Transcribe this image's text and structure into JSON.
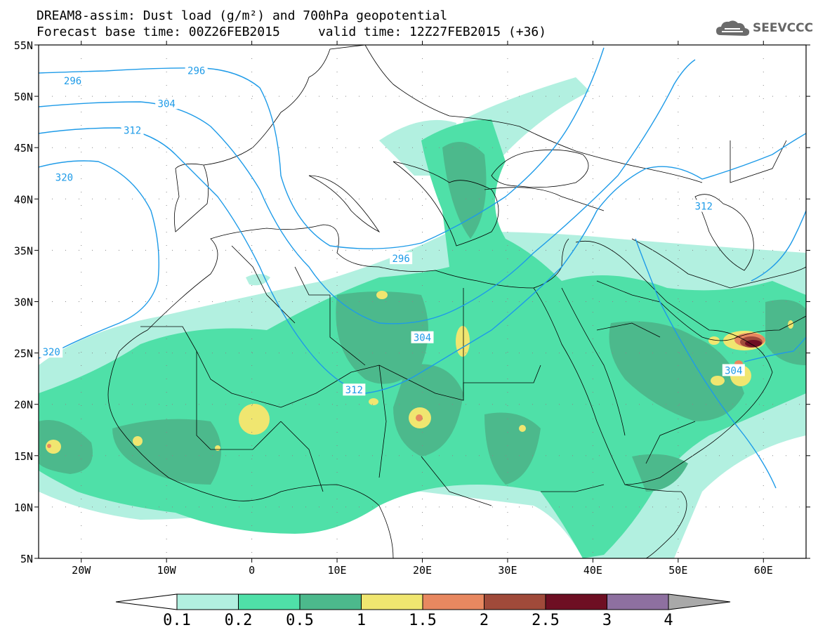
{
  "title": {
    "line1": "DREAM8-assim: Dust load (g/m²) and 700hPa geopotential",
    "line2": "Forecast base time: 00Z26FEB2015     valid time: 12Z27FEB2015 (+36)"
  },
  "logo": {
    "text": "SEEVCCC",
    "icon": "cloud-logo-icon"
  },
  "map": {
    "lon_range": [
      -25,
      65
    ],
    "lat_range": [
      5,
      55
    ],
    "lat_ticks": [
      {
        "value": 55,
        "label": "55N"
      },
      {
        "value": 50,
        "label": "50N"
      },
      {
        "value": 45,
        "label": "45N"
      },
      {
        "value": 40,
        "label": "40N"
      },
      {
        "value": 35,
        "label": "35N"
      },
      {
        "value": 30,
        "label": "30N"
      },
      {
        "value": 25,
        "label": "25N"
      },
      {
        "value": 20,
        "label": "20N"
      },
      {
        "value": 15,
        "label": "15N"
      },
      {
        "value": 10,
        "label": "10N"
      },
      {
        "value": 5,
        "label": "5N"
      }
    ],
    "lon_ticks": [
      {
        "value": -20,
        "label": "20W"
      },
      {
        "value": -10,
        "label": "10W"
      },
      {
        "value": 0,
        "label": "0"
      },
      {
        "value": 10,
        "label": "10E"
      },
      {
        "value": 20,
        "label": "20E"
      },
      {
        "value": 30,
        "label": "30E"
      },
      {
        "value": 40,
        "label": "40E"
      },
      {
        "value": 50,
        "label": "50E"
      },
      {
        "value": 60,
        "label": "60E"
      }
    ],
    "contour_labels": [
      {
        "text": "296",
        "lon": -21,
        "lat": 51.5
      },
      {
        "text": "296",
        "lon": -6.5,
        "lat": 52.5
      },
      {
        "text": "304",
        "lon": -10,
        "lat": 49.3
      },
      {
        "text": "312",
        "lon": -14,
        "lat": 46.7
      },
      {
        "text": "320",
        "lon": -22,
        "lat": 42.1
      },
      {
        "text": "296",
        "lon": 17.5,
        "lat": 34.2
      },
      {
        "text": "304",
        "lon": 20,
        "lat": 26.5
      },
      {
        "text": "312",
        "lon": 12,
        "lat": 21.4
      },
      {
        "text": "320",
        "lon": -23.5,
        "lat": 25.1
      },
      {
        "text": "312",
        "lon": 53,
        "lat": 39.3
      },
      {
        "text": "304",
        "lon": 56.5,
        "lat": 23.3
      }
    ]
  },
  "legend": {
    "labels": [
      "0.1",
      "0.2",
      "0.5",
      "1",
      "1.5",
      "2",
      "2.5",
      "3",
      "4"
    ],
    "colors": [
      "#b2f0e0",
      "#4fe0a8",
      "#4cb98c",
      "#f0e670",
      "#e88860",
      "#a04a3a",
      "#6e0f23",
      "#8e70a0"
    ],
    "low_color": "#ffffff",
    "high_color": "#a9a9a9"
  },
  "colors": {
    "contour": "#1e9be8",
    "border": "#000000",
    "dust_low": "#b2f0e0",
    "dust_mid": "#4fe0a8",
    "dust_high": "#4cb98c",
    "dust_yellow": "#f0e670",
    "dust_orange": "#e88860",
    "dust_brown": "#a04a3a",
    "dust_dark": "#6e0f23"
  }
}
